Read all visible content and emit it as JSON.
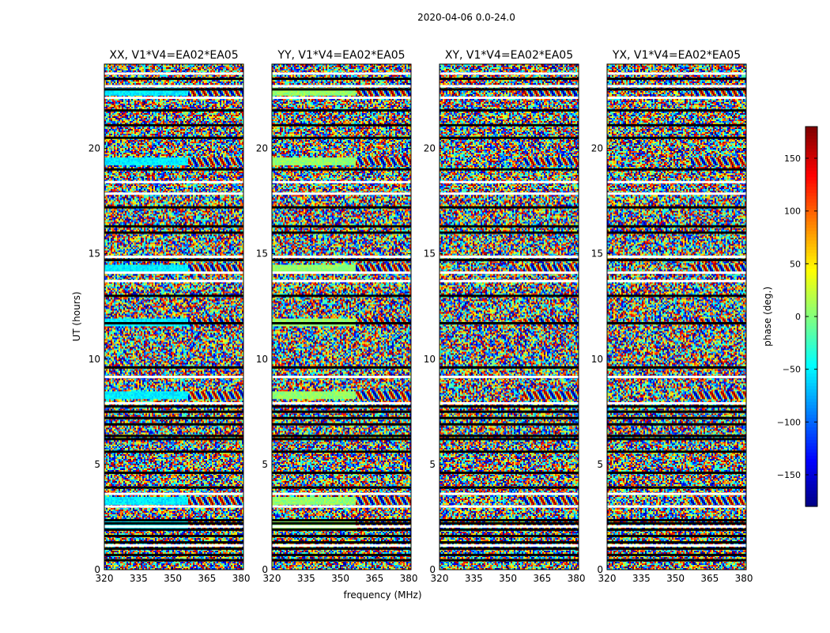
{
  "chart_data": {
    "type": "heatmap",
    "title": "2020-04-06 0.0-24.0",
    "xlabel": "frequency (MHz)",
    "ylabel": "UT (hours)",
    "xlim": [
      320,
      381
    ],
    "ylim": [
      0,
      24
    ],
    "x_ticks": [
      320,
      335,
      350,
      365,
      380
    ],
    "y_ticks": [
      0,
      5,
      10,
      15,
      20
    ],
    "panels": [
      {
        "title": "XX, V1*V4=EA02*EA05",
        "correlation": "XX"
      },
      {
        "title": "YY, V1*V4=EA02*EA05",
        "correlation": "YY"
      },
      {
        "title": "XY, V1*V4=EA02*EA05",
        "correlation": "XY"
      },
      {
        "title": "YX, V1*V4=EA02*EA05",
        "correlation": "YX"
      }
    ],
    "colorbar": {
      "label": "phase (deg.)",
      "range": [
        -180,
        180
      ],
      "ticks": [
        150,
        100,
        50,
        0,
        -50,
        -100,
        -150
      ],
      "tick_labels": [
        "150",
        "100",
        "50",
        "0",
        "−50",
        "−100",
        "−150"
      ],
      "colormap": "jet"
    },
    "dark_band_hours": [
      0.45,
      0.7,
      1.0,
      1.3,
      1.6,
      1.9,
      2.2,
      2.35,
      3.9,
      4.6,
      5.6,
      6.2,
      6.35,
      6.9,
      7.2,
      7.5,
      7.75,
      9.6,
      11.7,
      13.0,
      14.7,
      16.0,
      16.3,
      17.2,
      19.0,
      20.5,
      21.1,
      21.8,
      22.8,
      23.3
    ],
    "white_band_hours": [
      1.15,
      2.05,
      3.0,
      3.6,
      7.9,
      9.15,
      13.7,
      14.1,
      14.85,
      17.85,
      18.4,
      22.4,
      22.95,
      23.55
    ],
    "coherent_region_hours": [
      2.2,
      3.3,
      8.3,
      11.8,
      14.3,
      19.4,
      22.7
    ]
  }
}
